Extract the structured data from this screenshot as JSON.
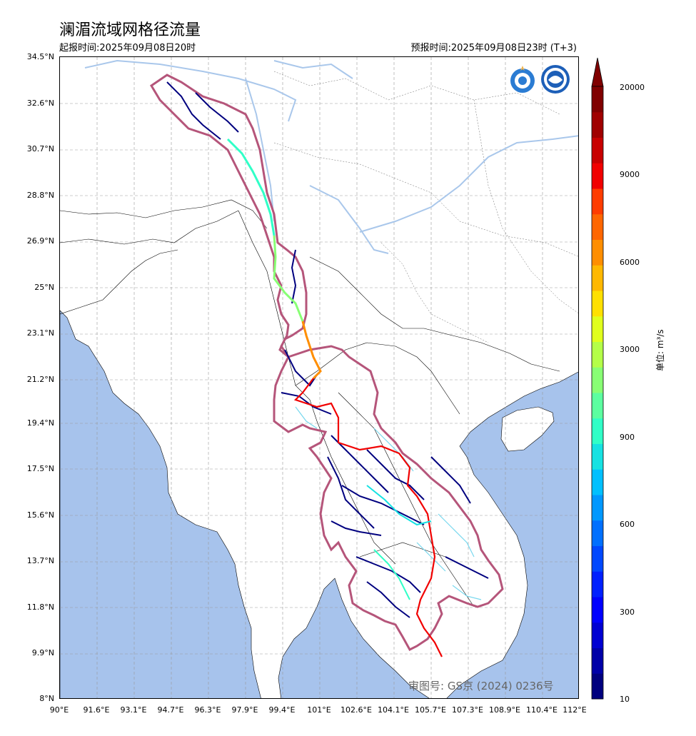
{
  "header": {
    "title": "澜湄流域网格径流量",
    "issue_time": "起报时间:2025年09月08日20时",
    "valid_time": "预报时间:2025年09月08日23时 (T+3)"
  },
  "map": {
    "lat_labels": [
      "34.5°N",
      "32.6°N",
      "30.7°N",
      "28.8°N",
      "26.9°N",
      "25°N",
      "23.1°N",
      "21.2°N",
      "19.4°N",
      "17.5°N",
      "15.6°N",
      "13.7°N",
      "11.8°N",
      "9.9°N",
      "8°N"
    ],
    "lon_labels": [
      "90°E",
      "91.6°E",
      "93.1°E",
      "94.7°E",
      "96.3°E",
      "97.9°E",
      "99.4°E",
      "101°E",
      "102.6°E",
      "104.1°E",
      "105.7°E",
      "107.3°E",
      "108.9°E",
      "110.4°E",
      "112°E"
    ],
    "approval_number": "审图号: GS京 (2024) 0236号",
    "colors": {
      "sea": "#a7c3ec",
      "land": "#ffffff",
      "basin_border": "#b5557a",
      "river_lake": "#a9c7eb"
    },
    "logos": [
      "wmo-logo",
      "cma-logo"
    ]
  },
  "colorbar": {
    "ticks": [
      "20000",
      "9000",
      "6000",
      "3000",
      "900",
      "600",
      "300",
      "10"
    ],
    "unit": "单位: m³/s",
    "colors": [
      "#00007f",
      "#0000a8",
      "#0000d2",
      "#0000ff",
      "#0020ff",
      "#0048ff",
      "#0070ff",
      "#0098ff",
      "#00c0ff",
      "#16e2e2",
      "#30ffc7",
      "#5cffa0",
      "#88ff74",
      "#b4ff48",
      "#e0ff1c",
      "#ffe000",
      "#ffb800",
      "#ff8e00",
      "#ff6600",
      "#ff3c00",
      "#f10000",
      "#c80000",
      "#a00000",
      "#800000"
    ]
  }
}
